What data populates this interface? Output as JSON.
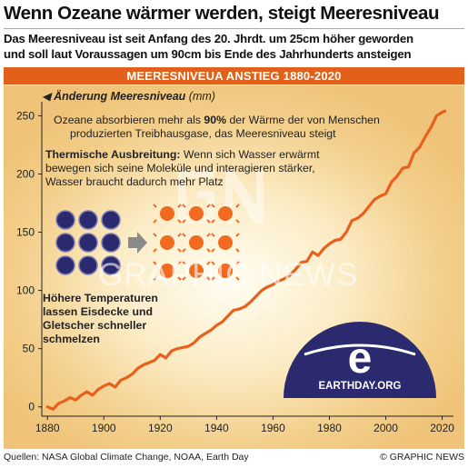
{
  "header": {
    "title": "Wenn Ozeane wärmer werden, steigt Meeresniveau",
    "subtitle_line1": "Das Meeresniveau ist seit Anfang des 20. Jhrdt. um 25cm höher geworden",
    "subtitle_line2": "und soll laut Voraussagen um 90cm bis Ende des Jahrhunderts ansteigen",
    "band": "MEERESNIVEUA ANSTIEG 1880-2020"
  },
  "annotations": {
    "ocean_pre": "Ozeane absorbieren mehr als ",
    "ocean_bold": "90%",
    "ocean_post": " der Wärme der von Menschen",
    "ocean_line2": "produzierten Treibhausgase, das Meeresniveau steigt",
    "thermal_label": "Thermische Ausbreitung:",
    "thermal_line1": " Wenn sich Wasser erwärmt",
    "thermal_line2": "bewegen sich seine Moleküle und interagieren stärker,",
    "thermal_line3": "Wasser braucht dadurch mehr Platz",
    "ice_line1": "Höhere Temperaturen",
    "ice_line2": "lassen Eisdecke und",
    "ice_line3": "Gletscher schneller",
    "ice_line4": "schmelzen",
    "logo_text": "EARTHDAY.ORG",
    "watermark": "GRAPHIC NEWS"
  },
  "footer": {
    "sources": "Quellen: NASA Global Climate Change, NOAA, Earth Day",
    "copyright": "© GRAPHIC NEWS"
  },
  "colors": {
    "accent": "#e2601a",
    "line": "#e8601c",
    "molecule_cold": "#2b2a6e",
    "molecule_hot": "#f06a1f",
    "logo": "#2b2a6e"
  },
  "chart_data": {
    "type": "line",
    "title": "Änderung Meeresniveau",
    "ylabel": "Änderung Meeresniveau",
    "yunit": "(mm)",
    "xlim": [
      1878,
      2024
    ],
    "ylim": [
      -8,
      262
    ],
    "xticks": [
      1880,
      1900,
      1920,
      1940,
      1960,
      1980,
      2000,
      2020
    ],
    "yticks": [
      0,
      50,
      100,
      150,
      200,
      250
    ],
    "grid": false,
    "series": [
      {
        "x": [
          1880,
          1882,
          1884,
          1886,
          1888,
          1890,
          1892,
          1894,
          1896,
          1898,
          1900,
          1902,
          1904,
          1906,
          1908,
          1910,
          1912,
          1914,
          1916,
          1918,
          1920,
          1922,
          1924,
          1926,
          1928,
          1930,
          1932,
          1934,
          1936,
          1938,
          1940,
          1942,
          1944,
          1946,
          1948,
          1950,
          1952,
          1954,
          1956,
          1958,
          1960,
          1962,
          1964,
          1966,
          1968,
          1970,
          1972,
          1974,
          1976,
          1978,
          1980,
          1982,
          1984,
          1986,
          1988,
          1990,
          1992,
          1994,
          1996,
          1998,
          2000,
          2002,
          2004,
          2006,
          2008,
          2010,
          2012,
          2014,
          2016,
          2018,
          2020,
          2021
        ],
        "values": [
          0,
          -2,
          3,
          5,
          8,
          6,
          10,
          13,
          10,
          15,
          18,
          20,
          17,
          23,
          25,
          28,
          33,
          36,
          38,
          40,
          45,
          42,
          48,
          50,
          51,
          52,
          55,
          60,
          63,
          66,
          70,
          73,
          78,
          83,
          84,
          86,
          90,
          95,
          100,
          103,
          105,
          108,
          110,
          113,
          118,
          124,
          125,
          133,
          130,
          136,
          140,
          143,
          144,
          150,
          160,
          162,
          166,
          172,
          178,
          181,
          183,
          193,
          198,
          205,
          206,
          218,
          223,
          232,
          240,
          250,
          253,
          254
        ]
      }
    ]
  }
}
